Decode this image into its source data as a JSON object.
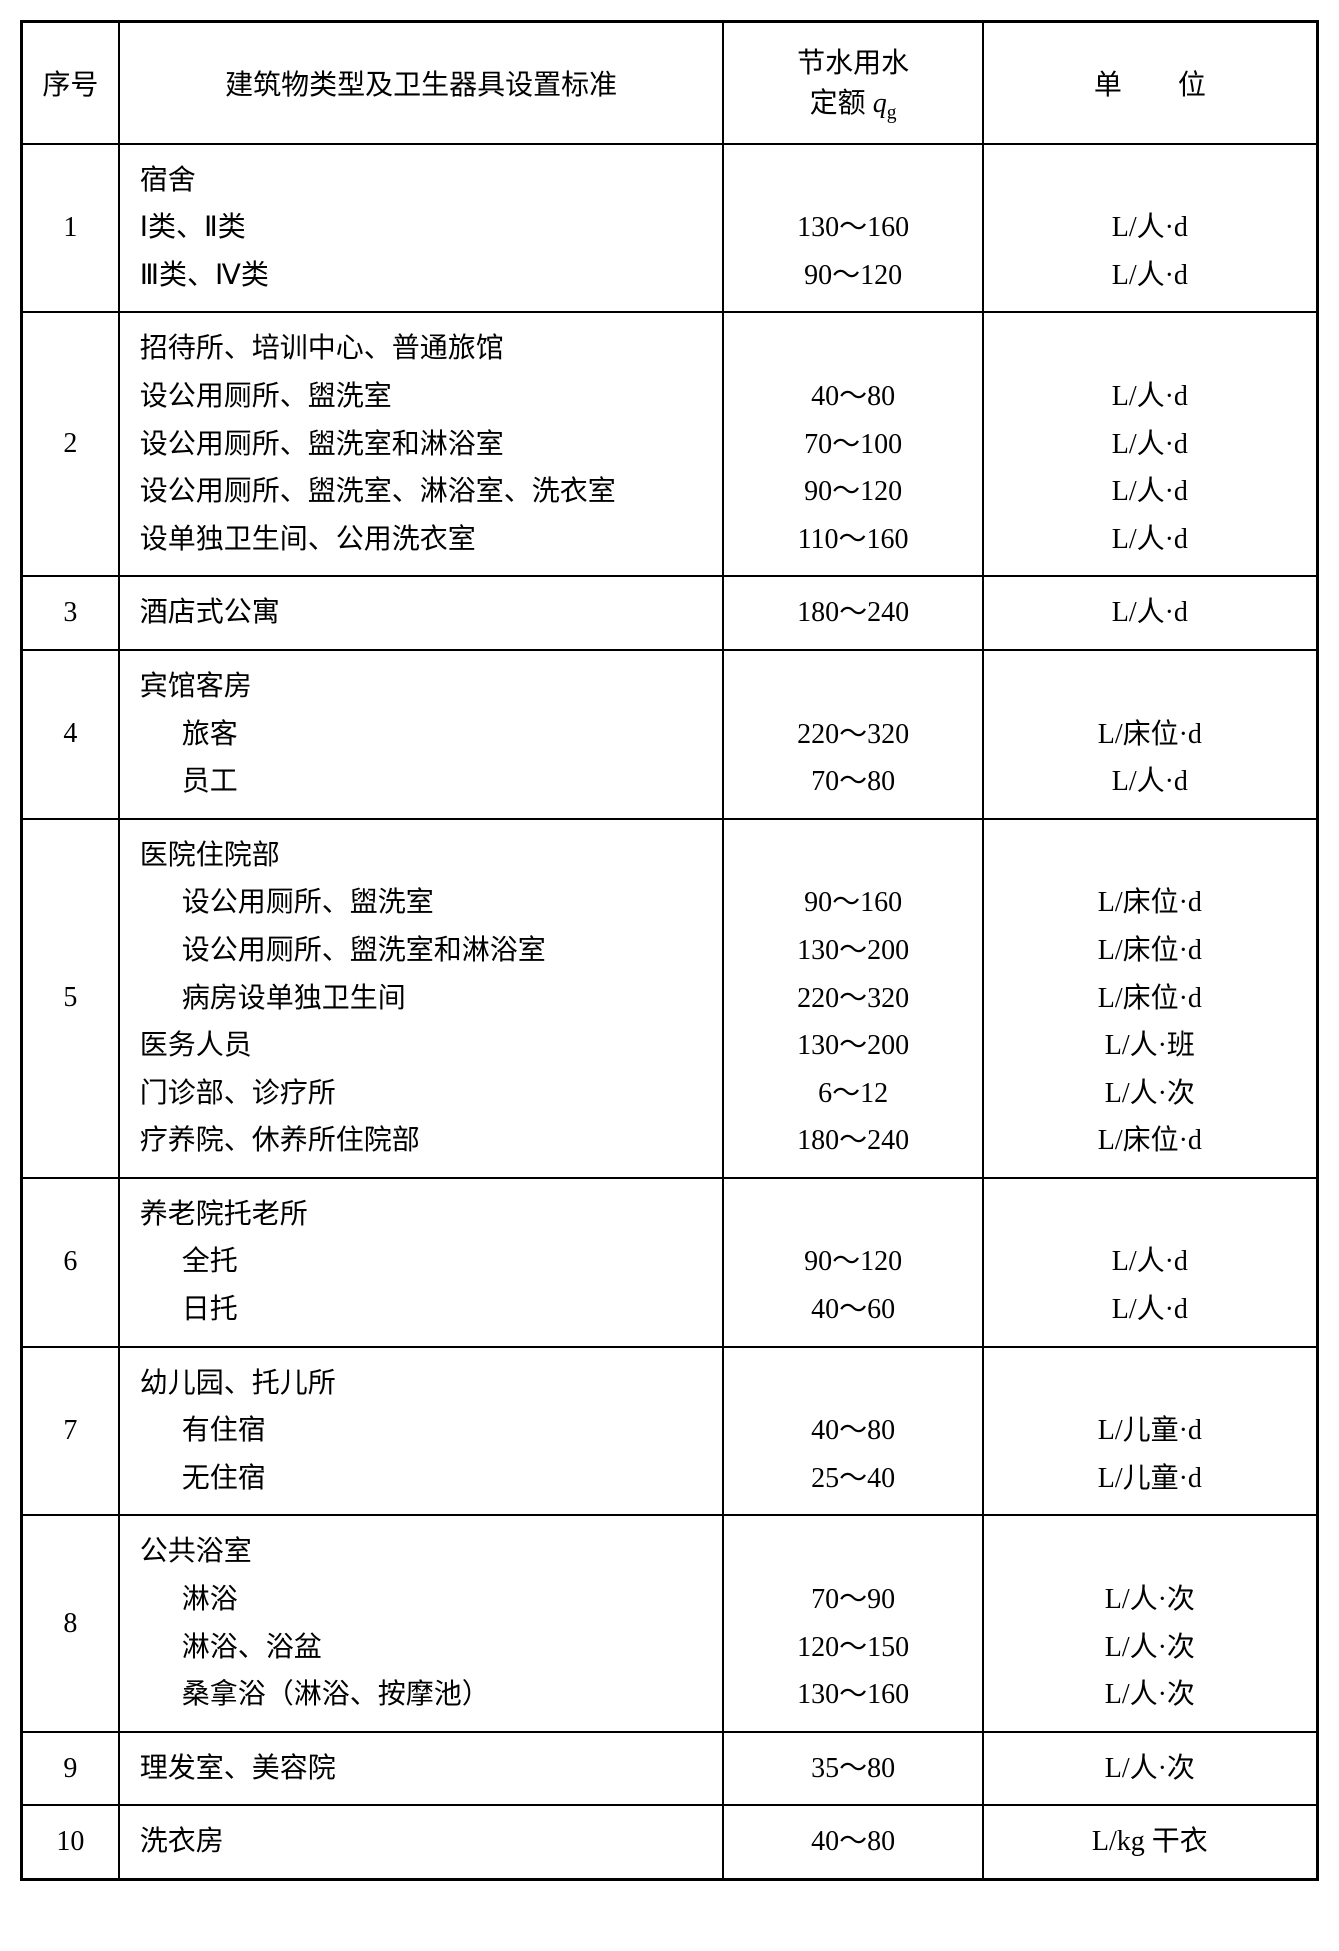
{
  "header": {
    "seq": "序号",
    "desc": "建筑物类型及卫生器具设置标准",
    "quota_line1": "节水用水",
    "quota_line2_prefix": "定额 ",
    "quota_q": "q",
    "quota_g": "g",
    "unit_prefix": "单",
    "unit_suffix": "位"
  },
  "rows": [
    {
      "seq": "1",
      "desc_lines": [
        {
          "text": "宿舍",
          "indent": 0
        },
        {
          "text": "Ⅰ类、Ⅱ类",
          "indent": 0
        },
        {
          "text": "Ⅲ类、Ⅳ类",
          "indent": 0
        }
      ],
      "quota_lines": [
        "",
        "130～160",
        "90～120"
      ],
      "unit_lines": [
        "",
        "L/人·d",
        "L/人·d"
      ]
    },
    {
      "seq": "2",
      "desc_lines": [
        {
          "text": "招待所、培训中心、普通旅馆",
          "indent": 0
        },
        {
          "text": "设公用厕所、盥洗室",
          "indent": 0
        },
        {
          "text": "设公用厕所、盥洗室和淋浴室",
          "indent": 0
        },
        {
          "text": "设公用厕所、盥洗室、淋浴室、洗衣室",
          "indent": 0
        },
        {
          "text": "设单独卫生间、公用洗衣室",
          "indent": 0
        }
      ],
      "quota_lines": [
        "",
        "40～80",
        "70～100",
        "90～120",
        "110～160"
      ],
      "unit_lines": [
        "",
        "L/人·d",
        "L/人·d",
        "L/人·d",
        "L/人·d"
      ]
    },
    {
      "seq": "3",
      "desc_lines": [
        {
          "text": "酒店式公寓",
          "indent": 0
        }
      ],
      "quota_lines": [
        "180～240"
      ],
      "unit_lines": [
        "L/人·d"
      ]
    },
    {
      "seq": "4",
      "desc_lines": [
        {
          "text": "宾馆客房",
          "indent": 0
        },
        {
          "text": "旅客",
          "indent": 1
        },
        {
          "text": "员工",
          "indent": 1
        }
      ],
      "quota_lines": [
        "",
        "220～320",
        "70～80"
      ],
      "unit_lines": [
        "",
        "L/床位·d",
        "L/人·d"
      ]
    },
    {
      "seq": "5",
      "desc_lines": [
        {
          "text": "医院住院部",
          "indent": 0
        },
        {
          "text": "设公用厕所、盥洗室",
          "indent": 1
        },
        {
          "text": "设公用厕所、盥洗室和淋浴室",
          "indent": 1
        },
        {
          "text": "病房设单独卫生间",
          "indent": 1
        },
        {
          "text": "医务人员",
          "indent": 0
        },
        {
          "text": "门诊部、诊疗所",
          "indent": 0
        },
        {
          "text": "疗养院、休养所住院部",
          "indent": 0
        }
      ],
      "quota_lines": [
        "",
        "90～160",
        "130～200",
        "220～320",
        "130～200",
        "6～12",
        "180～240"
      ],
      "unit_lines": [
        "",
        "L/床位·d",
        "L/床位·d",
        "L/床位·d",
        "L/人·班",
        "L/人·次",
        "L/床位·d"
      ]
    },
    {
      "seq": "6",
      "desc_lines": [
        {
          "text": "养老院托老所",
          "indent": 0
        },
        {
          "text": "全托",
          "indent": 1
        },
        {
          "text": "日托",
          "indent": 1
        }
      ],
      "quota_lines": [
        "",
        "90～120",
        "40～60"
      ],
      "unit_lines": [
        "",
        "L/人·d",
        "L/人·d"
      ]
    },
    {
      "seq": "7",
      "desc_lines": [
        {
          "text": "幼儿园、托儿所",
          "indent": 0
        },
        {
          "text": "有住宿",
          "indent": 1
        },
        {
          "text": "无住宿",
          "indent": 1
        }
      ],
      "quota_lines": [
        "",
        "40～80",
        "25～40"
      ],
      "unit_lines": [
        "",
        "L/儿童·d",
        "L/儿童·d"
      ]
    },
    {
      "seq": "8",
      "desc_lines": [
        {
          "text": "公共浴室",
          "indent": 0
        },
        {
          "text": "淋浴",
          "indent": 1
        },
        {
          "text": "淋浴、浴盆",
          "indent": 1
        },
        {
          "text": "桑拿浴（淋浴、按摩池）",
          "indent": 1
        }
      ],
      "quota_lines": [
        "",
        "70～90",
        "120～150",
        "130～160"
      ],
      "unit_lines": [
        "",
        "L/人·次",
        "L/人·次",
        "L/人·次"
      ]
    },
    {
      "seq": "9",
      "desc_lines": [
        {
          "text": "理发室、美容院",
          "indent": 0
        }
      ],
      "quota_lines": [
        "35～80"
      ],
      "unit_lines": [
        "L/人·次"
      ]
    },
    {
      "seq": "10",
      "desc_lines": [
        {
          "text": "洗衣房",
          "indent": 0
        }
      ],
      "quota_lines": [
        "40～80"
      ],
      "unit_lines": [
        "L/kg 干衣"
      ]
    }
  ]
}
